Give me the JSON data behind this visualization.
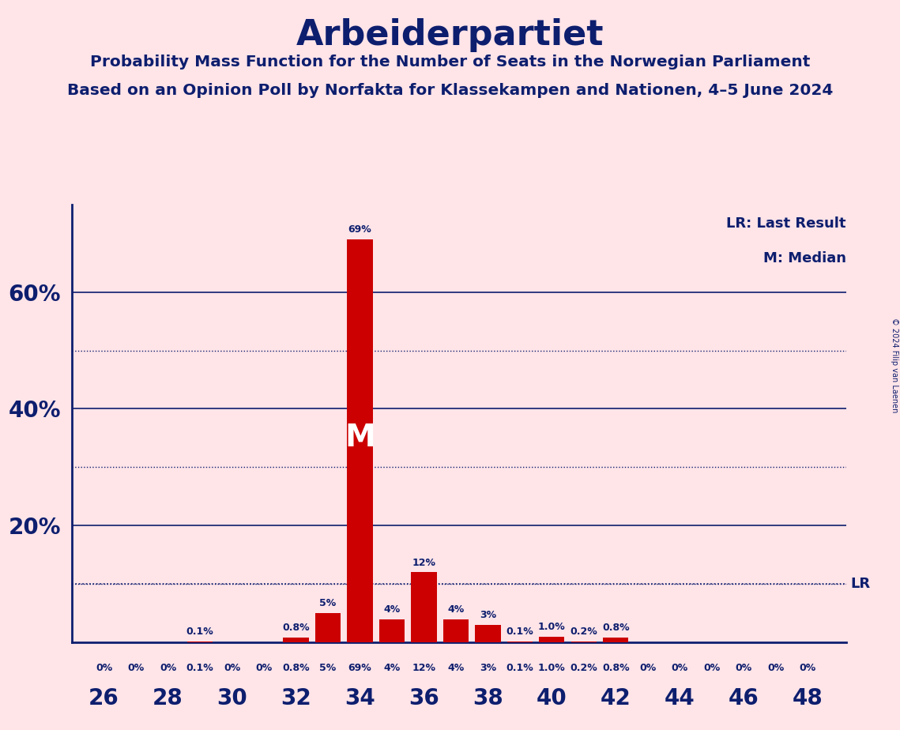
{
  "title": "Arbeiderpartiet",
  "subtitle1": "Probability Mass Function for the Number of Seats in the Norwegian Parliament",
  "subtitle2": "Based on an Opinion Poll by Norfakta for Klassekampen and Nationen, 4–5 June 2024",
  "copyright": "© 2024 Filip van Laenen",
  "legend_lr": "LR: Last Result",
  "legend_m": "M: Median",
  "background_color": "#FFE4E8",
  "bar_color": "#CC0000",
  "text_color": "#0D1E6E",
  "seats": [
    26,
    27,
    28,
    29,
    30,
    31,
    32,
    33,
    34,
    35,
    36,
    37,
    38,
    39,
    40,
    41,
    42,
    43,
    44,
    45,
    46,
    47,
    48
  ],
  "probabilities": [
    0.0,
    0.0,
    0.0,
    0.1,
    0.0,
    0.0,
    0.8,
    5.0,
    69.0,
    4.0,
    12.0,
    4.0,
    3.0,
    0.1,
    1.0,
    0.2,
    0.8,
    0.0,
    0.0,
    0.0,
    0.0,
    0.0,
    0.0
  ],
  "labels": [
    "0%",
    "0%",
    "0%",
    "0.1%",
    "0%",
    "0%",
    "0.8%",
    "5%",
    "69%",
    "4%",
    "12%",
    "4%",
    "3%",
    "0.1%",
    "1.0%",
    "0.2%",
    "0.8%",
    "0%",
    "0%",
    "0%",
    "0%",
    "0%",
    "0%"
  ],
  "median_seat": 34,
  "solid_gridlines": [
    20,
    40,
    60
  ],
  "dotted_gridlines": [
    10,
    30,
    50
  ],
  "lr_line_y": 10.0,
  "xlabel_seats": [
    26,
    28,
    30,
    32,
    34,
    36,
    38,
    40,
    42,
    44,
    46,
    48
  ],
  "ylim": [
    0,
    75
  ],
  "xlim": [
    25.0,
    49.2
  ]
}
